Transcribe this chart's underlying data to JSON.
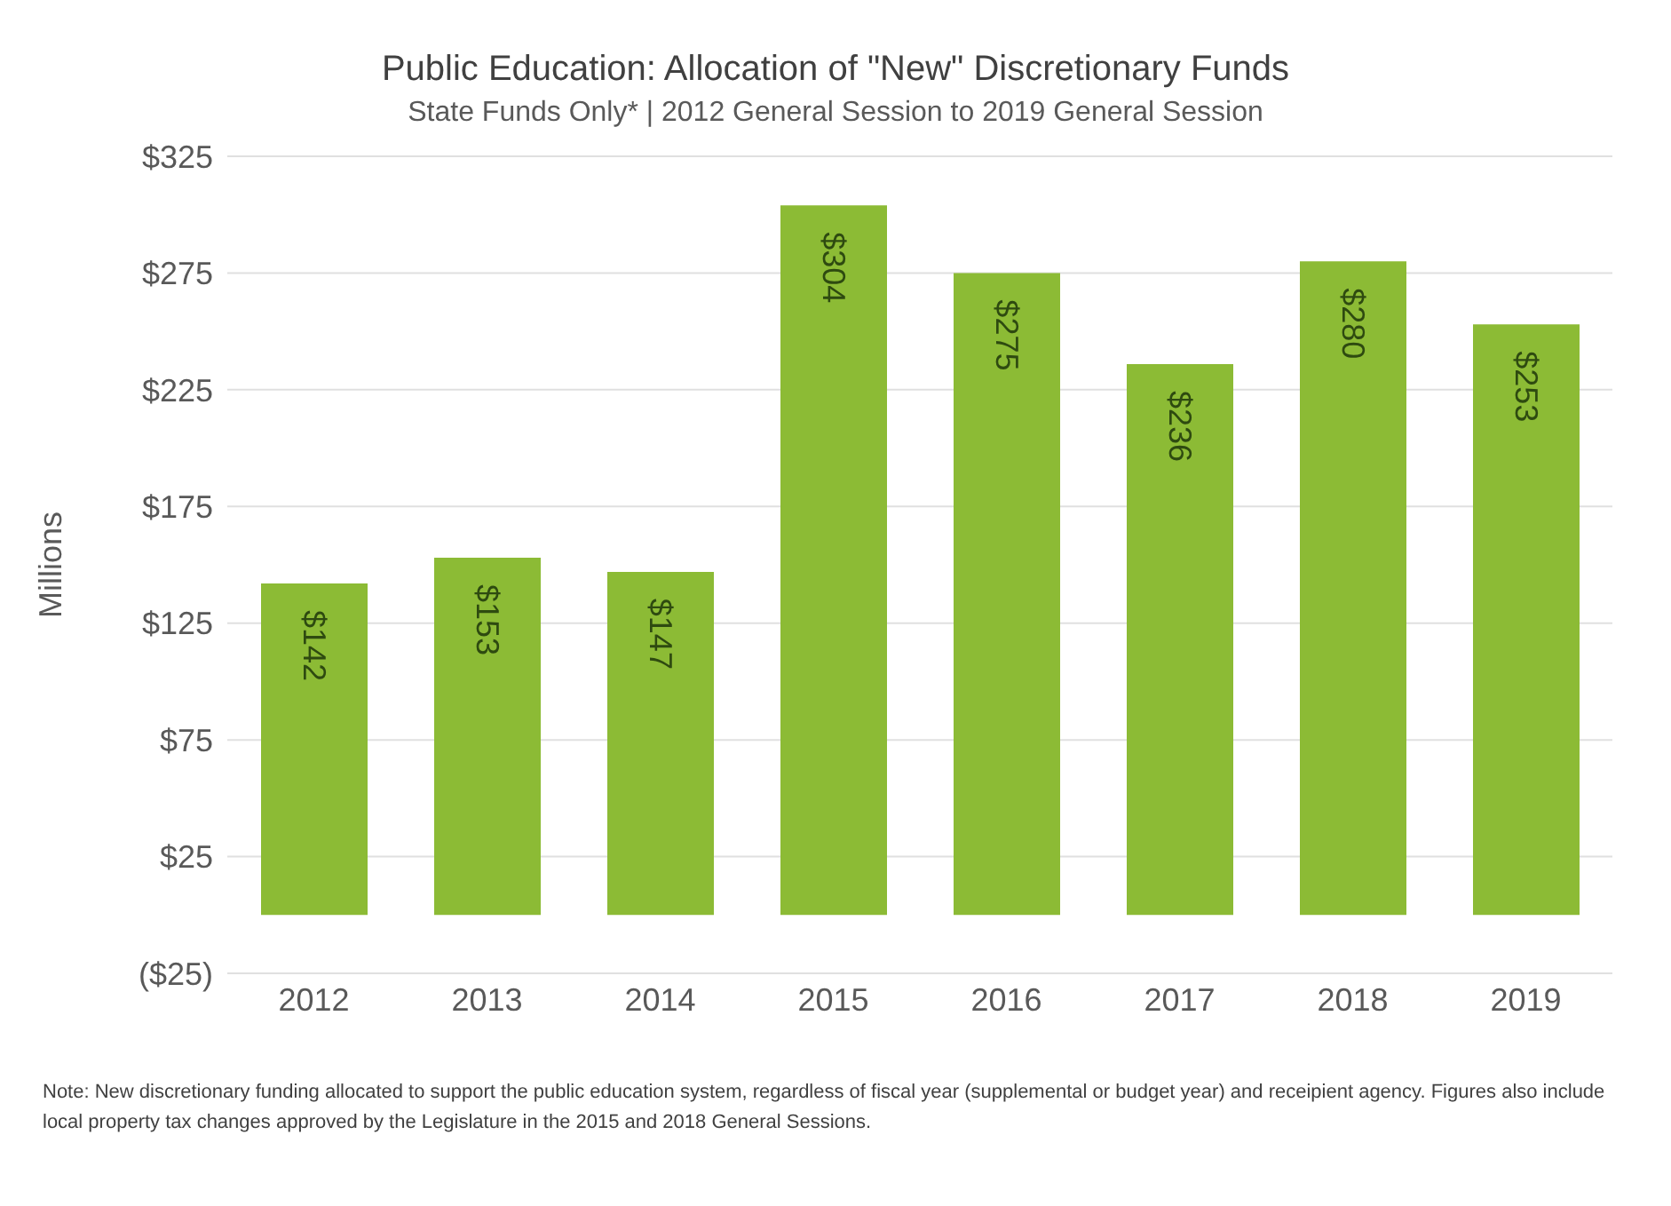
{
  "chart_data": {
    "type": "bar",
    "title": "Public Education: Allocation of \"New\" Discretionary Funds",
    "subtitle": "State Funds Only* | 2012 General Session to 2019 General Session",
    "ylabel": "Millions",
    "categories": [
      "2012",
      "2013",
      "2014",
      "2015",
      "2016",
      "2017",
      "2018",
      "2019"
    ],
    "values": [
      142,
      153,
      147,
      304,
      275,
      236,
      280,
      253
    ],
    "value_labels": [
      "$142",
      "$153",
      "$147",
      "$304",
      "$275",
      "$236",
      "$280",
      "$253"
    ],
    "color": "#8cbb35",
    "ylim": [
      -25,
      325
    ],
    "yticks": [
      {
        "value": -25,
        "label": "($25)"
      },
      {
        "value": 25,
        "label": "$25"
      },
      {
        "value": 75,
        "label": "$75"
      },
      {
        "value": 125,
        "label": "$125"
      },
      {
        "value": 175,
        "label": "$175"
      },
      {
        "value": 225,
        "label": "$225"
      },
      {
        "value": 275,
        "label": "$275"
      },
      {
        "value": 325,
        "label": "$325"
      }
    ],
    "grid": "y",
    "annotations": [
      "Note: New discretionary funding allocated to support the public education system, regardless of fiscal year (supplemental or budget year) and receipient agency.  Figures also include local property tax changes approved by the Legislature in the 2015 and 2018 General Sessions."
    ]
  }
}
